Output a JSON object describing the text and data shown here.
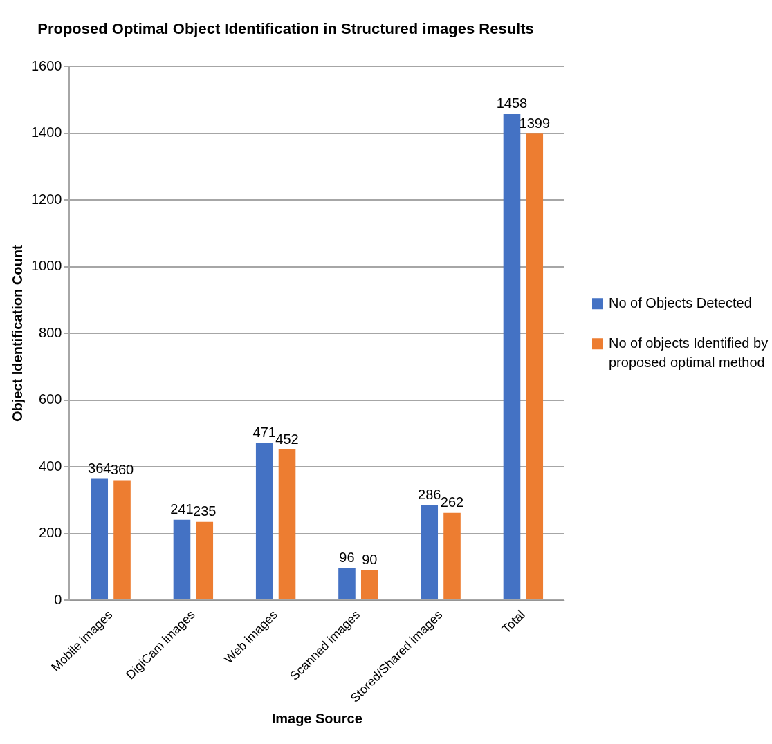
{
  "chart_data": {
    "type": "bar",
    "title": "Proposed Optimal Object Identification in Structured images Results",
    "xlabel": "Image Source",
    "ylabel": "Object Identification Count",
    "categories": [
      "Mobile images",
      "DigiCam images",
      "Web images",
      "Scanned images",
      "Stored/Shared images",
      "Total"
    ],
    "series": [
      {
        "name": "No of Objects Detected",
        "color": "#4472c4",
        "values": [
          364,
          241,
          471,
          96,
          286,
          1458
        ]
      },
      {
        "name": "No of objects Identified by proposed optimal method",
        "color": "#ed7d31",
        "values": [
          360,
          235,
          452,
          90,
          262,
          1399
        ]
      }
    ],
    "ylim": [
      0,
      1600
    ],
    "yticks": [
      0,
      200,
      400,
      600,
      800,
      1000,
      1200,
      1400,
      1600
    ],
    "grid": "y",
    "legend": "right",
    "data_labels": true
  }
}
